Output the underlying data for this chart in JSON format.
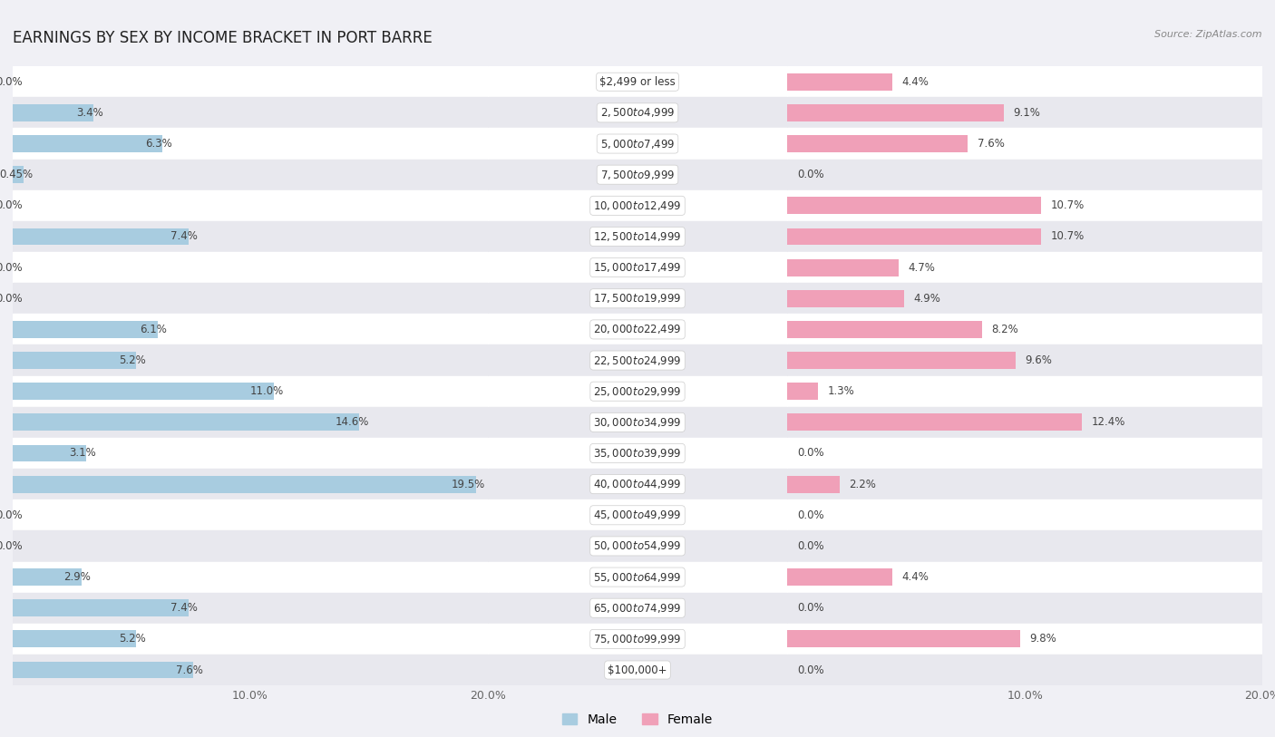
{
  "title": "EARNINGS BY SEX BY INCOME BRACKET IN PORT BARRE",
  "source": "Source: ZipAtlas.com",
  "categories": [
    "$2,499 or less",
    "$2,500 to $4,999",
    "$5,000 to $7,499",
    "$7,500 to $9,999",
    "$10,000 to $12,499",
    "$12,500 to $14,999",
    "$15,000 to $17,499",
    "$17,500 to $19,999",
    "$20,000 to $22,499",
    "$22,500 to $24,999",
    "$25,000 to $29,999",
    "$30,000 to $34,999",
    "$35,000 to $39,999",
    "$40,000 to $44,999",
    "$45,000 to $49,999",
    "$50,000 to $54,999",
    "$55,000 to $64,999",
    "$65,000 to $74,999",
    "$75,000 to $99,999",
    "$100,000+"
  ],
  "male_values": [
    0.0,
    3.4,
    6.3,
    0.45,
    0.0,
    7.4,
    0.0,
    0.0,
    6.1,
    5.2,
    11.0,
    14.6,
    3.1,
    19.5,
    0.0,
    0.0,
    2.9,
    7.4,
    5.2,
    7.6
  ],
  "female_values": [
    4.4,
    9.1,
    7.6,
    0.0,
    10.7,
    10.7,
    4.7,
    4.9,
    8.2,
    9.6,
    1.3,
    12.4,
    0.0,
    2.2,
    0.0,
    0.0,
    4.4,
    0.0,
    9.8,
    0.0
  ],
  "male_color": "#91bcd9",
  "female_color": "#e8829a",
  "male_bar_color": "#a8cce0",
  "female_bar_color": "#f0a0b8",
  "xlim": 20.0,
  "bg_color": "#f0f0f5",
  "row_color_even": "#ffffff",
  "row_color_odd": "#e8e8ee",
  "label_color": "#444444",
  "title_fontsize": 12,
  "tick_fontsize": 9,
  "bar_height": 0.55,
  "category_fontsize": 8.5,
  "value_fontsize": 8.5
}
